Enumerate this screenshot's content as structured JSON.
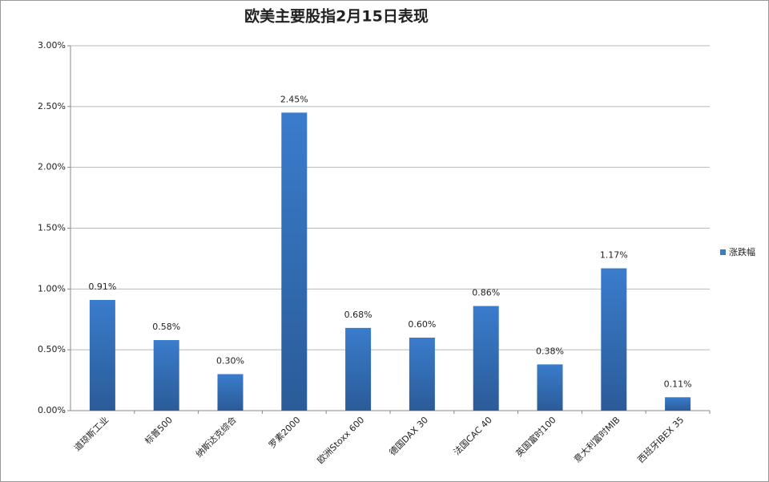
{
  "chart_data": {
    "type": "bar",
    "title": "欧美主要股指2月15日表现",
    "categories": [
      "道琼斯工业",
      "标普500",
      "纳斯达克综合",
      "罗素2000",
      "欧洲Stoxx 600",
      "德国DAX 30",
      "法国CAC 40",
      "英国富时100",
      "意大利富时MIB",
      "西班牙IBEX 35"
    ],
    "series": [
      {
        "name": "涨跌幅",
        "color": "#3a7ccc",
        "values": [
          0.91,
          0.58,
          0.3,
          2.45,
          0.68,
          0.6,
          0.86,
          0.38,
          1.17,
          0.11
        ],
        "value_labels": [
          "0.91%",
          "0.58%",
          "0.30%",
          "2.45%",
          "0.68%",
          "0.60%",
          "0.86%",
          "0.38%",
          "1.17%",
          "0.11%"
        ]
      }
    ],
    "ylim": [
      0,
      3
    ],
    "yticks": [
      {
        "value": 0,
        "label": "0.00%"
      },
      {
        "value": 0.5,
        "label": "0.50%"
      },
      {
        "value": 1,
        "label": "1.00%"
      },
      {
        "value": 1.5,
        "label": "1.50%"
      },
      {
        "value": 2,
        "label": "2.00%"
      },
      {
        "value": 2.5,
        "label": "2.50%"
      },
      {
        "value": 3,
        "label": "3.00%"
      }
    ],
    "grid": true,
    "legend": "right"
  }
}
